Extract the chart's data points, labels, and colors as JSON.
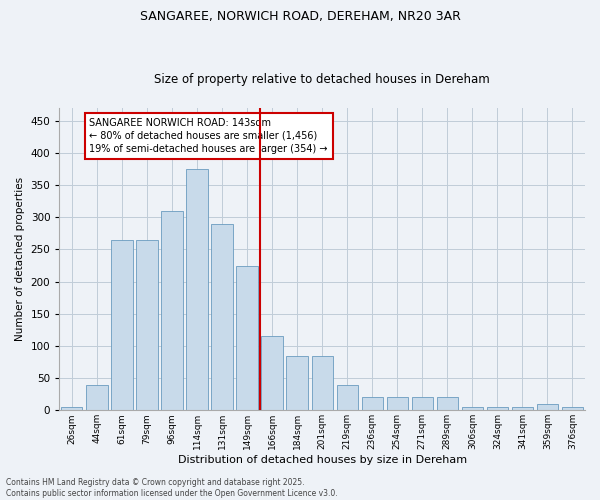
{
  "title": "SANGAREE, NORWICH ROAD, DEREHAM, NR20 3AR",
  "subtitle": "Size of property relative to detached houses in Dereham",
  "xlabel": "Distribution of detached houses by size in Dereham",
  "ylabel": "Number of detached properties",
  "bar_color": "#c8daea",
  "bar_edge_color": "#6a9cbf",
  "background_color": "#eef2f7",
  "categories": [
    "26sqm",
    "44sqm",
    "61sqm",
    "79sqm",
    "96sqm",
    "114sqm",
    "131sqm",
    "149sqm",
    "166sqm",
    "184sqm",
    "201sqm",
    "219sqm",
    "236sqm",
    "254sqm",
    "271sqm",
    "289sqm",
    "306sqm",
    "324sqm",
    "341sqm",
    "359sqm",
    "376sqm"
  ],
  "values": [
    5,
    40,
    265,
    265,
    310,
    375,
    290,
    225,
    115,
    85,
    85,
    40,
    20,
    20,
    20,
    20,
    5,
    5,
    5,
    10,
    5
  ],
  "vline_pos": 7.5,
  "vline_color": "#cc0000",
  "annotation_title": "SANGAREE NORWICH ROAD: 143sqm",
  "annotation_line1": "← 80% of detached houses are smaller (1,456)",
  "annotation_line2": "19% of semi-detached houses are larger (354) →",
  "ylim": [
    0,
    470
  ],
  "yticks": [
    0,
    50,
    100,
    150,
    200,
    250,
    300,
    350,
    400,
    450
  ],
  "footnote1": "Contains HM Land Registry data © Crown copyright and database right 2025.",
  "footnote2": "Contains public sector information licensed under the Open Government Licence v3.0.",
  "grid_color": "#c0ccd8",
  "title_fontsize": 9,
  "subtitle_fontsize": 8.5
}
